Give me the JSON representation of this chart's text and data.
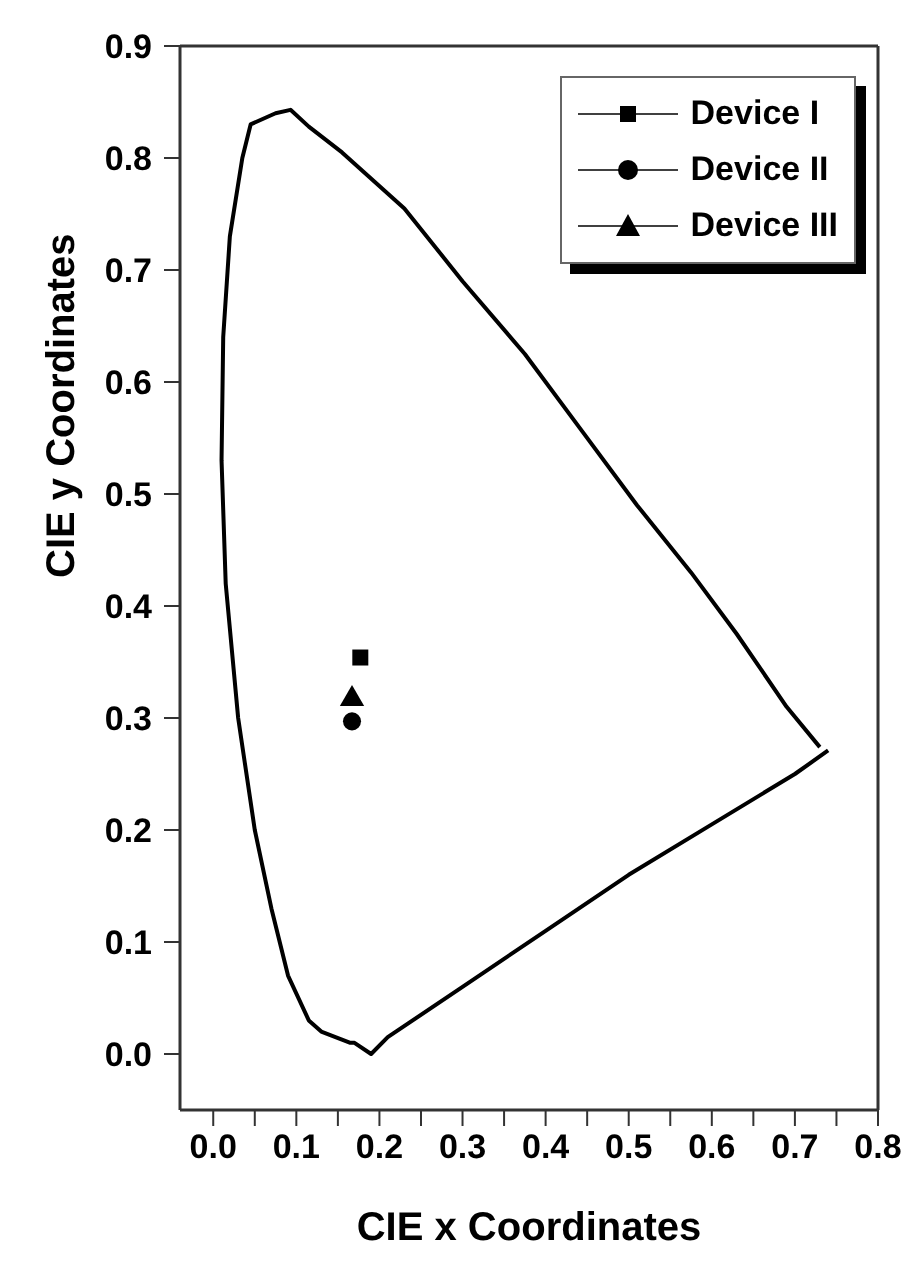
{
  "chart_data": {
    "type": "scatter",
    "xlabel": "CIE x Coordinates",
    "ylabel": "CIE y Coordinates",
    "xlim": [
      -0.04,
      0.8
    ],
    "ylim": [
      -0.05,
      0.9
    ],
    "xticks": [
      {
        "value": 0,
        "label": "0.0"
      },
      {
        "value": 0.05,
        "label": null
      },
      0.1,
      {
        "value": 0.15,
        "label": null
      },
      0.2,
      {
        "value": 0.25,
        "label": null
      },
      0.3,
      {
        "value": 0.35,
        "label": null
      },
      0.4,
      {
        "value": 0.45,
        "label": null
      },
      0.5,
      {
        "value": 0.55,
        "label": null
      },
      0.6,
      {
        "value": 0.65,
        "label": null
      },
      0.7,
      {
        "value": 0.75,
        "label": null
      },
      0.8
    ],
    "yticks": [
      {
        "value": 0,
        "label": "0.0"
      },
      0.1,
      0.2,
      0.3,
      0.4,
      0.5,
      0.6,
      0.7,
      0.8,
      0.9
    ],
    "legend": "top right",
    "series": [
      {
        "type": "line",
        "color": "#000000",
        "marker": "none",
        "line_style": "solid",
        "x": [
          0.73,
          0.69,
          0.63,
          0.575,
          0.51,
          0.445,
          0.375,
          0.3,
          0.23,
          0.155,
          0.115,
          0.093,
          0.075,
          0.045,
          0.035,
          0.02,
          0.012,
          0.01,
          0.015,
          0.03,
          0.05,
          0.07,
          0.09,
          0.115,
          0.13,
          0.165,
          0.17,
          0.19,
          0.21,
          0.3,
          0.4,
          0.5,
          0.6,
          0.7,
          0.74
        ],
        "values": [
          0.274,
          0.31,
          0.375,
          0.43,
          0.49,
          0.555,
          0.625,
          0.69,
          0.755,
          0.805,
          0.828,
          0.843,
          0.84,
          0.83,
          0.8,
          0.73,
          0.64,
          0.53,
          0.42,
          0.3,
          0.2,
          0.13,
          0.07,
          0.03,
          0.02,
          0.01,
          0.01,
          0.0,
          0.015,
          0.06,
          0.11,
          0.16,
          0.205,
          0.25,
          0.271
        ]
      },
      {
        "name": "Device I",
        "color": "#000000",
        "marker": "square",
        "x": [
          0.177
        ],
        "values": [
          0.354
        ]
      },
      {
        "name": "Device II",
        "color": "#000000",
        "marker": "circle",
        "x": [
          0.167
        ],
        "values": [
          0.297
        ]
      },
      {
        "name": "Device III",
        "color": "#000000",
        "marker": "triangle",
        "x": [
          0.167
        ],
        "values": [
          0.317
        ]
      }
    ]
  }
}
